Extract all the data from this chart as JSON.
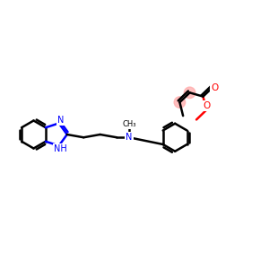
{
  "bg_color": "#ffffff",
  "bond_color": "#000000",
  "n_color": "#0000ff",
  "o_color": "#ff0000",
  "highlight_color": "#ffaaaa",
  "bond_width": 1.8,
  "figsize": [
    3.0,
    3.0
  ],
  "dpi": 100,
  "xlim": [
    0,
    12
  ],
  "ylim": [
    2,
    8
  ]
}
